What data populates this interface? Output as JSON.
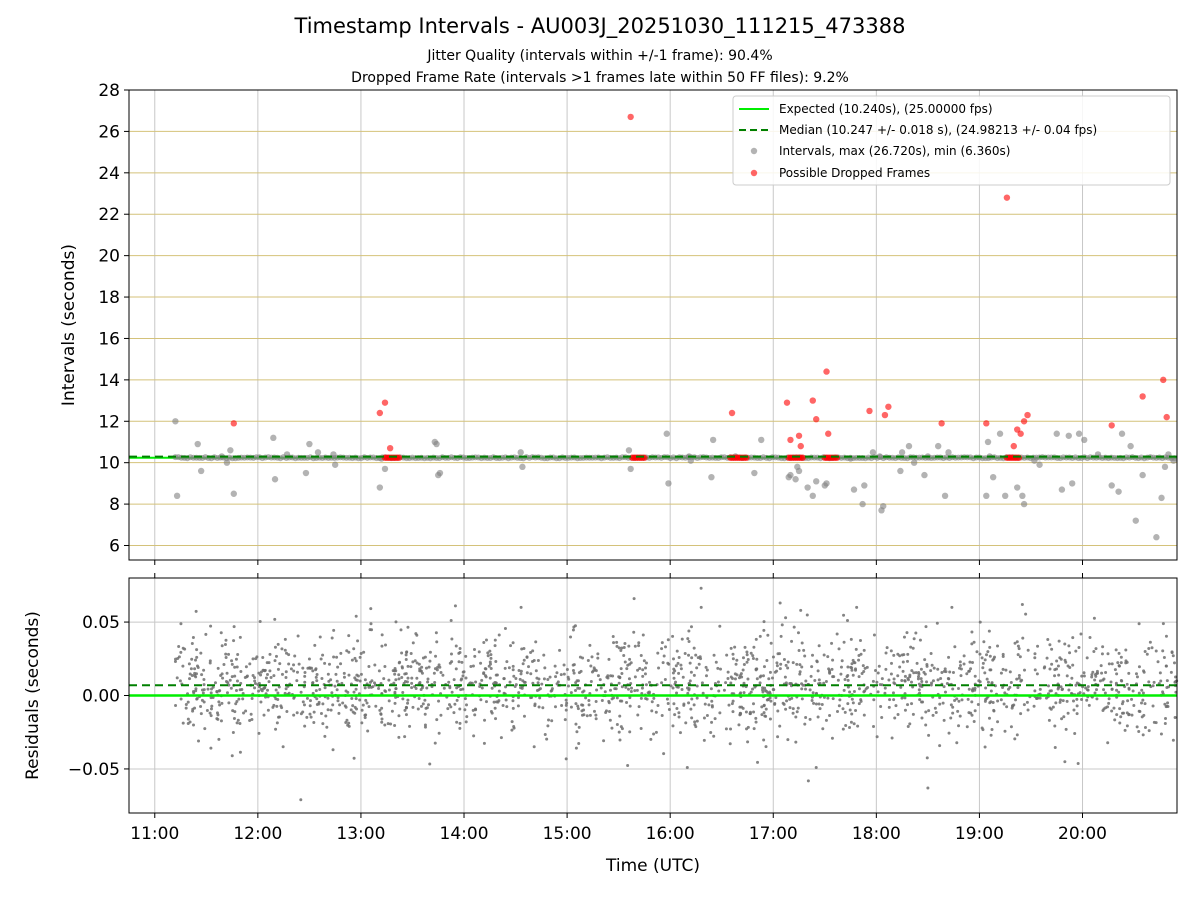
{
  "title": "Timestamp Intervals - AU003J_20251030_111215_473388",
  "subtitle_jitter": "Jitter Quality (intervals within +/-1 frame): 90.4%",
  "subtitle_dropped": "Dropped Frame Rate (intervals >1 frames late within 50 FF files): 9.2%",
  "colors": {
    "expected": "#00ee00",
    "median": "#008000",
    "intervals": "#808080",
    "dropped": "#ff0000",
    "hgrid": "#d4c27a",
    "vgrid": "#c8c8c8"
  },
  "chart_data": [
    {
      "type": "scatter",
      "panel": "top",
      "ylabel": "Intervals (seconds)",
      "xlabel": "",
      "xlim": [
        "10:45",
        "20:55"
      ],
      "ylim": [
        5.3,
        28
      ],
      "xticks": [
        "11:00",
        "12:00",
        "13:00",
        "14:00",
        "15:00",
        "16:00",
        "17:00",
        "18:00",
        "19:00",
        "20:00"
      ],
      "yticks": [
        6,
        8,
        10,
        12,
        14,
        16,
        18,
        20,
        22,
        24,
        26,
        28
      ],
      "legend": {
        "placement": "top-right",
        "expected_label": "Expected (10.240s), (25.00000 fps)",
        "median_label": "Median (10.247 +/- 0.018 s), (24.98213 +/- 0.04 fps)",
        "intervals_label": "Intervals, max (26.720s), min (6.360s)",
        "dropped_label": "Possible Dropped Frames"
      },
      "expected_value": 10.24,
      "median_value": 10.247,
      "baseline_range": [
        "11:12",
        "20:55"
      ],
      "intervals_points": [
        [
          "11:12",
          12.0
        ],
        [
          "11:13",
          8.4
        ],
        [
          "11:25",
          10.9
        ],
        [
          "11:27",
          9.6
        ],
        [
          "11:39",
          10.3
        ],
        [
          "11:42",
          10.0
        ],
        [
          "11:44",
          10.6
        ],
        [
          "11:46",
          8.5
        ],
        [
          "12:09",
          11.2
        ],
        [
          "12:10",
          9.2
        ],
        [
          "12:17",
          10.4
        ],
        [
          "12:28",
          9.5
        ],
        [
          "12:30",
          10.9
        ],
        [
          "12:35",
          10.5
        ],
        [
          "12:44",
          10.4
        ],
        [
          "12:45",
          9.9
        ],
        [
          "13:11",
          8.8
        ],
        [
          "13:12",
          10.2
        ],
        [
          "13:14",
          9.7
        ],
        [
          "13:43",
          11.0
        ],
        [
          "13:44",
          10.9
        ],
        [
          "13:45",
          9.4
        ],
        [
          "13:46",
          9.5
        ],
        [
          "14:33",
          10.5
        ],
        [
          "14:34",
          9.8
        ],
        [
          "15:36",
          10.6
        ],
        [
          "15:37",
          9.7
        ],
        [
          "15:58",
          11.4
        ],
        [
          "15:59",
          9.0
        ],
        [
          "16:11",
          10.3
        ],
        [
          "16:12",
          10.1
        ],
        [
          "16:24",
          9.3
        ],
        [
          "16:25",
          11.1
        ],
        [
          "16:38",
          10.3
        ],
        [
          "16:49",
          9.5
        ],
        [
          "16:53",
          11.1
        ],
        [
          "17:09",
          9.3
        ],
        [
          "17:10",
          9.4
        ],
        [
          "17:13",
          9.2
        ],
        [
          "17:14",
          9.8
        ],
        [
          "17:15",
          9.6
        ],
        [
          "17:20",
          8.8
        ],
        [
          "17:23",
          8.4
        ],
        [
          "17:25",
          9.1
        ],
        [
          "17:30",
          8.9
        ],
        [
          "17:31",
          9.0
        ],
        [
          "17:45",
          10.2
        ],
        [
          "17:47",
          8.7
        ],
        [
          "17:52",
          8.0
        ],
        [
          "17:53",
          8.9
        ],
        [
          "17:58",
          10.5
        ],
        [
          "18:02",
          10.3
        ],
        [
          "18:03",
          7.7
        ],
        [
          "18:04",
          7.9
        ],
        [
          "18:14",
          9.6
        ],
        [
          "18:15",
          10.5
        ],
        [
          "18:19",
          10.8
        ],
        [
          "18:22",
          10.0
        ],
        [
          "18:28",
          9.4
        ],
        [
          "18:30",
          10.3
        ],
        [
          "18:36",
          10.8
        ],
        [
          "18:40",
          8.4
        ],
        [
          "18:42",
          10.5
        ],
        [
          "19:04",
          8.4
        ],
        [
          "19:05",
          11.0
        ],
        [
          "19:06",
          10.3
        ],
        [
          "19:08",
          9.3
        ],
        [
          "19:12",
          11.4
        ],
        [
          "19:15",
          8.4
        ],
        [
          "19:22",
          8.8
        ],
        [
          "19:25",
          8.4
        ],
        [
          "19:26",
          8.0
        ],
        [
          "19:32",
          10.1
        ],
        [
          "19:35",
          9.9
        ],
        [
          "19:45",
          11.4
        ],
        [
          "19:48",
          8.7
        ],
        [
          "19:52",
          11.3
        ],
        [
          "19:54",
          9.0
        ],
        [
          "19:58",
          11.4
        ],
        [
          "20:01",
          11.1
        ],
        [
          "20:09",
          10.4
        ],
        [
          "20:17",
          8.9
        ],
        [
          "20:21",
          8.6
        ],
        [
          "20:23",
          11.4
        ],
        [
          "20:28",
          10.8
        ],
        [
          "20:31",
          7.2
        ],
        [
          "20:35",
          9.4
        ],
        [
          "20:43",
          6.4
        ],
        [
          "20:46",
          8.3
        ],
        [
          "20:48",
          9.8
        ],
        [
          "20:50",
          10.4
        ],
        [
          "20:53",
          10.1
        ]
      ],
      "dropped_points": [
        [
          "11:46",
          11.9
        ],
        [
          "13:11",
          12.4
        ],
        [
          "13:14",
          12.9
        ],
        [
          "13:17",
          10.7
        ],
        [
          "15:37",
          26.7
        ],
        [
          "16:36",
          12.4
        ],
        [
          "17:08",
          12.9
        ],
        [
          "17:10",
          11.1
        ],
        [
          "17:15",
          11.3
        ],
        [
          "17:16",
          10.8
        ],
        [
          "17:23",
          13.0
        ],
        [
          "17:25",
          12.1
        ],
        [
          "17:31",
          14.4
        ],
        [
          "17:32",
          11.4
        ],
        [
          "17:56",
          12.5
        ],
        [
          "18:05",
          12.3
        ],
        [
          "18:07",
          12.7
        ],
        [
          "18:38",
          11.9
        ],
        [
          "19:04",
          11.9
        ],
        [
          "19:16",
          22.8
        ],
        [
          "19:20",
          10.8
        ],
        [
          "19:22",
          11.6
        ],
        [
          "19:24",
          11.4
        ],
        [
          "19:26",
          12.0
        ],
        [
          "19:28",
          12.3
        ],
        [
          "20:17",
          11.8
        ],
        [
          "20:35",
          13.2
        ],
        [
          "20:47",
          14.0
        ],
        [
          "20:49",
          12.2
        ]
      ],
      "dropped_clusters": [
        [
          "13:14",
          "13:23"
        ],
        [
          "15:38",
          "15:46"
        ],
        [
          "16:35",
          "16:45"
        ],
        [
          "17:09",
          "17:18"
        ],
        [
          "17:30",
          "17:38"
        ],
        [
          "19:16",
          "19:24"
        ]
      ]
    },
    {
      "type": "scatter",
      "panel": "bottom",
      "xlabel": "Time (UTC)",
      "ylabel": "Residuals (seconds)",
      "xlim": [
        "10:45",
        "20:55"
      ],
      "ylim": [
        -0.08,
        0.08
      ],
      "yticks": [
        -0.05,
        0.0,
        0.05
      ],
      "ytick_labels": [
        "−0.05",
        "0.00",
        "0.05"
      ],
      "xticks": [
        "11:00",
        "12:00",
        "13:00",
        "14:00",
        "15:00",
        "16:00",
        "17:00",
        "18:00",
        "19:00",
        "20:00"
      ],
      "expected_value": 0.0,
      "median_value": 0.007,
      "residuals_range": [
        "11:12",
        "20:55"
      ],
      "residuals_spread_sd": 0.018,
      "residual_count": 2000,
      "residuals_outliers": [
        [
          "12:25",
          -0.071
        ],
        [
          "16:18",
          0.073
        ],
        [
          "15:39",
          0.066
        ],
        [
          "18:30",
          -0.063
        ],
        [
          "17:25",
          -0.049
        ],
        [
          "13:55",
          0.061
        ],
        [
          "17:04",
          0.063
        ],
        [
          "19:25",
          0.062
        ]
      ]
    }
  ]
}
